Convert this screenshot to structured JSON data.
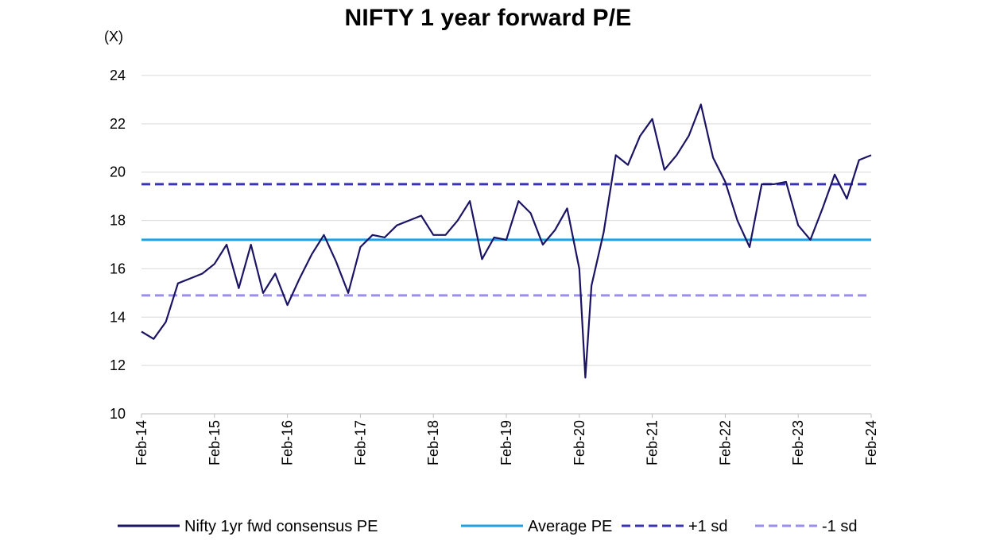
{
  "chart_data": {
    "type": "line",
    "title": "NIFTY 1 year forward P/E",
    "ylabel": "(X)",
    "xlabel": "",
    "ylim": [
      10,
      24
    ],
    "yticks": [
      "10",
      "12",
      "14",
      "16",
      "18",
      "20",
      "22",
      "24"
    ],
    "xticks": [
      "Feb-14",
      "Feb-15",
      "Feb-16",
      "Feb-17",
      "Feb-18",
      "Feb-19",
      "Feb-20",
      "Feb-21",
      "Feb-22",
      "Feb-23",
      "Feb-24"
    ],
    "grid": "horizontal",
    "legend": "bottom",
    "series": [
      {
        "name": "Nifty 1yr fwd consensus PE",
        "color": "#1b1464",
        "style": "solid",
        "x": [
          "2014-02",
          "2014-04",
          "2014-06",
          "2014-08",
          "2014-10",
          "2014-12",
          "2015-02",
          "2015-04",
          "2015-06",
          "2015-08",
          "2015-10",
          "2015-12",
          "2016-02",
          "2016-04",
          "2016-06",
          "2016-08",
          "2016-10",
          "2016-12",
          "2017-02",
          "2017-04",
          "2017-06",
          "2017-08",
          "2017-10",
          "2017-12",
          "2018-02",
          "2018-04",
          "2018-06",
          "2018-08",
          "2018-10",
          "2018-12",
          "2019-02",
          "2019-04",
          "2019-06",
          "2019-08",
          "2019-10",
          "2019-12",
          "2020-02",
          "2020-03",
          "2020-04",
          "2020-06",
          "2020-08",
          "2020-10",
          "2020-12",
          "2021-02",
          "2021-04",
          "2021-06",
          "2021-08",
          "2021-10",
          "2021-12",
          "2022-02",
          "2022-04",
          "2022-06",
          "2022-08",
          "2022-10",
          "2022-12",
          "2023-02",
          "2023-04",
          "2023-06",
          "2023-08",
          "2023-10",
          "2023-12",
          "2024-02"
        ],
        "values": [
          13.4,
          13.1,
          13.8,
          15.4,
          15.6,
          15.8,
          16.2,
          17.0,
          15.2,
          17.0,
          15.0,
          15.8,
          14.5,
          15.6,
          16.6,
          17.4,
          16.3,
          15.0,
          16.9,
          17.4,
          17.3,
          17.8,
          18.0,
          18.2,
          17.4,
          17.4,
          18.0,
          18.8,
          16.4,
          17.3,
          17.2,
          18.8,
          18.3,
          17.0,
          17.6,
          18.5,
          16.0,
          11.5,
          15.3,
          17.5,
          20.7,
          20.3,
          21.5,
          22.2,
          20.1,
          20.7,
          21.5,
          22.8,
          20.6,
          19.6,
          18.0,
          16.9,
          19.5,
          19.5,
          19.6,
          17.8,
          17.2,
          18.5,
          19.9,
          18.9,
          20.5,
          20.7
        ]
      },
      {
        "name": "Average PE",
        "color": "#1ea1e6",
        "style": "solid",
        "value": 17.2
      },
      {
        "name": "+1 sd",
        "color": "#3a33b5",
        "style": "dashed",
        "value": 19.5
      },
      {
        "name": "-1 sd",
        "color": "#9a8ef2",
        "style": "dashed",
        "value": 14.9
      }
    ]
  }
}
